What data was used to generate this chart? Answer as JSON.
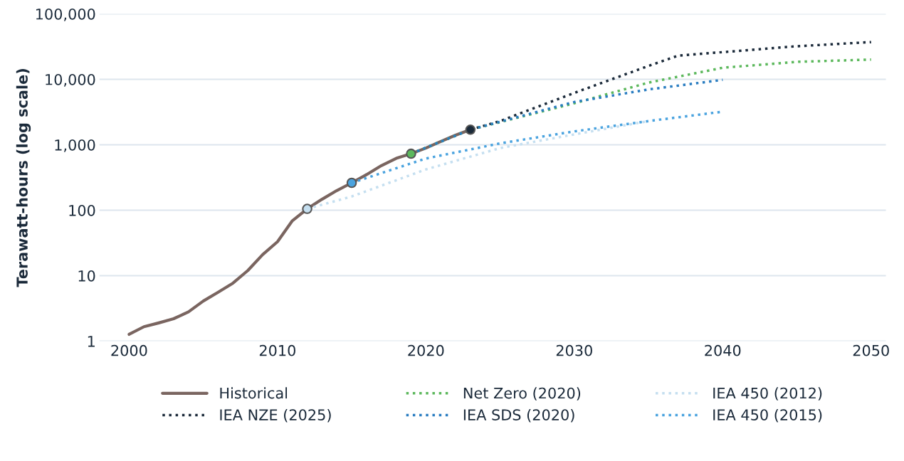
{
  "chart_data": {
    "type": "line",
    "ylabel": "Terawatt-hours (log scale)",
    "log": "y",
    "xlim": [
      1998,
      2051
    ],
    "ylim": [
      1,
      100000
    ],
    "xticks": [
      2000,
      2010,
      2020,
      2030,
      2040,
      2050
    ],
    "yticks": [
      {
        "value": 1,
        "label": "1"
      },
      {
        "value": 10,
        "label": "10"
      },
      {
        "value": 100,
        "label": "100"
      },
      {
        "value": 1000,
        "label": "1,000"
      },
      {
        "value": 10000,
        "label": "10,000"
      },
      {
        "value": 100000,
        "label": "100,000"
      }
    ],
    "grid": "y",
    "legend": "bottom",
    "series": [
      {
        "name": "Historical",
        "color": "#7a6560",
        "line_style": "solid",
        "x": [
          2000,
          2001,
          2002,
          2003,
          2004,
          2005,
          2006,
          2007,
          2008,
          2009,
          2010,
          2011,
          2012,
          2013,
          2014,
          2015,
          2016,
          2017,
          2018,
          2019,
          2020,
          2021,
          2022,
          2023
        ],
        "values": [
          1.27,
          1.66,
          1.9,
          2.2,
          2.8,
          4.1,
          5.6,
          7.7,
          12,
          21,
          33,
          69,
          105,
          147,
          200,
          262,
          350,
          480,
          620,
          730,
          890,
          1120,
          1400,
          1700
        ]
      },
      {
        "name": "IEA NZE (2025)",
        "color": "#1b2a3a",
        "line_style": "dotted",
        "x": [
          2023,
          2025,
          2030,
          2035,
          2037,
          2040,
          2045,
          2050
        ],
        "values": [
          1700,
          2300,
          6200,
          16000,
          23000,
          26000,
          32000,
          37000
        ]
      },
      {
        "name": "Net Zero (2020)",
        "color": "#5cb85c",
        "line_style": "dotted",
        "x": [
          2019,
          2023,
          2030,
          2035,
          2040,
          2045,
          2050
        ],
        "values": [
          730,
          1700,
          4300,
          8900,
          15000,
          18500,
          20000
        ]
      },
      {
        "name": "IEA SDS (2020)",
        "color": "#2a7dc1",
        "line_style": "dotted",
        "x": [
          2019,
          2023,
          2030,
          2035,
          2040
        ],
        "values": [
          730,
          1700,
          4500,
          7000,
          9800
        ]
      },
      {
        "name": "IEA 450 (2012)",
        "color": "#c5dff0",
        "line_style": "dotted",
        "x": [
          2012,
          2015,
          2020,
          2025,
          2030,
          2035
        ],
        "values": [
          105,
          162,
          420,
          890,
          1440,
          2300
        ]
      },
      {
        "name": "IEA 450 (2015)",
        "color": "#4aa3df",
        "line_style": "dotted",
        "x": [
          2015,
          2020,
          2025,
          2030,
          2035,
          2040
        ],
        "values": [
          262,
          616,
          1050,
          1600,
          2300,
          3200
        ]
      },
      {
        "type": "scatter",
        "x": [
          2012,
          2015,
          2019,
          2023
        ],
        "values": [
          105,
          262,
          730,
          1700
        ],
        "colors": [
          "#c5dff0",
          "#4aa3df",
          "#5cb85c",
          "#1b2a3a"
        ],
        "marker": "circle"
      }
    ]
  }
}
